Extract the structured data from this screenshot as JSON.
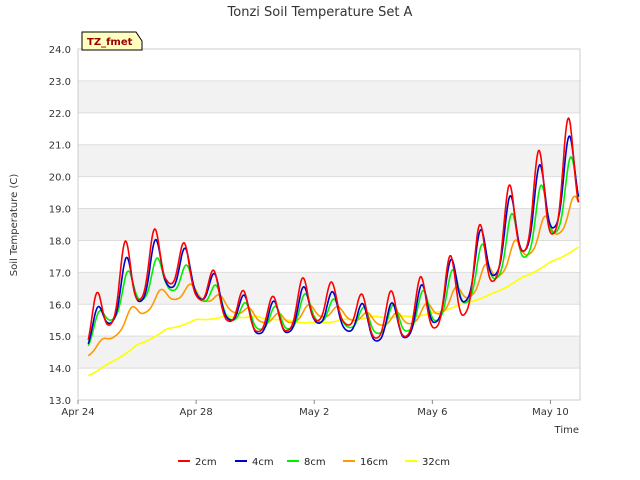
{
  "chart_data": {
    "type": "line",
    "title": "Tonzi Soil Temperature Set A",
    "xlabel": "Time",
    "ylabel": "Soil Temperature (C)",
    "ylim": [
      13.0,
      24.0
    ],
    "xlim": [
      0,
      17.0
    ],
    "x_unit": "days since Apr 24",
    "yticks": [
      "13.0",
      "14.0",
      "15.0",
      "16.0",
      "17.0",
      "18.0",
      "19.0",
      "20.0",
      "21.0",
      "22.0",
      "23.0",
      "24.0"
    ],
    "xticks": [
      {
        "label": "Apr 24",
        "day": 0
      },
      {
        "label": "Apr 28",
        "day": 4
      },
      {
        "label": "May 2",
        "day": 8
      },
      {
        "label": "May 6",
        "day": 12
      },
      {
        "label": "May 10",
        "day": 16
      }
    ],
    "grid": true,
    "band_color": "#f2f2f2",
    "legend_position": "bottom",
    "annotation": "TZ_fmet",
    "daily": {
      "mean_2cm": [
        14.3,
        16.2,
        17.0,
        17.4,
        16.8,
        16.0,
        15.6,
        15.6,
        16.2,
        15.8,
        15.5,
        15.6,
        16.0,
        16.5,
        17.6,
        18.7,
        19.4,
        20.3,
        20.8
      ],
      "amp_2cm": [
        0.3,
        2.6,
        2.6,
        2.0,
        1.6,
        1.4,
        1.3,
        1.3,
        2.0,
        1.1,
        1.6,
        1.8,
        2.2,
        2.6,
        2.7,
        3.1,
        3.6,
        3.9,
        4.2
      ],
      "mean_4cm": [
        14.3,
        15.9,
        16.8,
        17.2,
        16.8,
        16.0,
        15.5,
        15.5,
        16.0,
        15.6,
        15.3,
        15.4,
        16.0,
        16.7,
        17.6,
        18.5,
        19.3,
        20.1,
        20.6
      ],
      "amp_4cm": [
        0.2,
        1.6,
        2.2,
        1.8,
        1.5,
        1.2,
        1.2,
        1.2,
        1.6,
        1.1,
        1.3,
        1.4,
        1.8,
        2.0,
        2.2,
        2.6,
        2.8,
        3.0,
        3.1
      ],
      "mean_8cm": [
        14.3,
        15.8,
        16.6,
        16.9,
        16.6,
        15.9,
        15.5,
        15.5,
        15.9,
        15.6,
        15.4,
        15.5,
        15.9,
        16.5,
        17.3,
        18.1,
        18.9,
        19.7,
        20.1
      ],
      "amp_8cm": [
        0.2,
        1.1,
        1.5,
        1.2,
        1.0,
        0.9,
        0.8,
        0.9,
        1.2,
        0.8,
        0.9,
        1.1,
        1.4,
        1.6,
        1.7,
        2.1,
        2.2,
        2.4,
        2.4
      ],
      "mean_16cm": [
        14.2,
        14.9,
        15.8,
        16.3,
        16.4,
        16.0,
        15.6,
        15.5,
        15.8,
        15.7,
        15.5,
        15.5,
        15.8,
        16.3,
        17.0,
        17.7,
        18.4,
        19.0,
        19.7
      ],
      "amp_16cm": [
        0.1,
        0.3,
        0.6,
        0.5,
        0.5,
        0.4,
        0.4,
        0.4,
        0.5,
        0.4,
        0.4,
        0.5,
        0.6,
        0.7,
        0.8,
        0.9,
        1.0,
        1.0,
        1.0
      ],
      "mean_32cm": [
        13.6,
        14.1,
        14.7,
        15.2,
        15.5,
        15.6,
        15.6,
        15.5,
        15.4,
        15.5,
        15.6,
        15.6,
        15.7,
        16.0,
        16.3,
        16.8,
        17.3,
        17.8,
        18.2
      ],
      "amp_32cm": [
        0.05,
        0.05,
        0.05,
        0.05,
        0.05,
        0.05,
        0.05,
        0.05,
        0.05,
        0.05,
        0.05,
        0.05,
        0.05,
        0.05,
        0.05,
        0.05,
        0.05,
        0.05,
        0.05
      ]
    },
    "series": [
      {
        "name": "2cm",
        "key": "2cm",
        "color": "#ff0000",
        "phase": 0.6
      },
      {
        "name": "4cm",
        "key": "4cm",
        "color": "#0000cc",
        "phase": 0.63
      },
      {
        "name": "8cm",
        "key": "8cm",
        "color": "#00ee00",
        "phase": 0.68
      },
      {
        "name": "16cm",
        "key": "16cm",
        "color": "#ff9900",
        "phase": 0.8
      },
      {
        "name": "32cm",
        "key": "32cm",
        "color": "#ffff00",
        "phase": 0.0
      }
    ],
    "range": {
      "start_day": 0.35,
      "end_day": 16.95,
      "step": 0.02
    }
  }
}
